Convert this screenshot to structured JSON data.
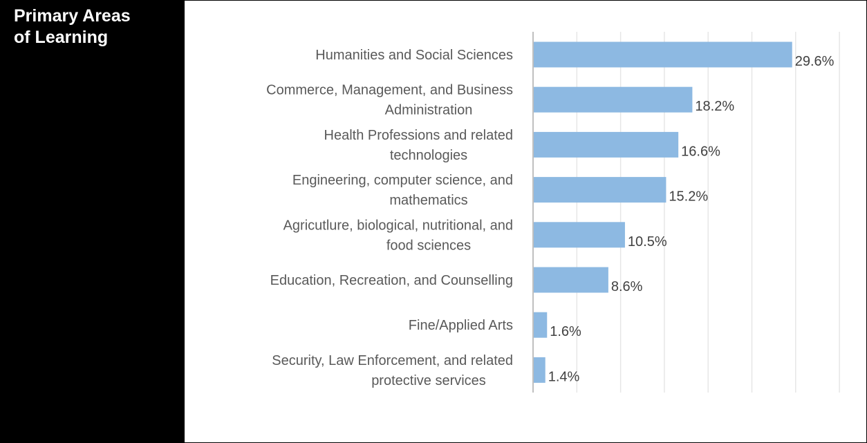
{
  "panel": {
    "title_line1": "Primary Areas",
    "title_line2": "of Learning"
  },
  "colors": {
    "bar": "#8db9e2",
    "gridline": "#e6e6e6",
    "axis": "#bfbfbf",
    "panel": "#000000",
    "panel_text": "#ffffff",
    "label_text": "#595959",
    "value_text": "#404040"
  },
  "chart_data": {
    "type": "bar",
    "orientation": "horizontal",
    "title": "Primary Areas of Learning",
    "categories": [
      [
        "Humanities and Social Sciences"
      ],
      [
        "Commerce, Management, and Business",
        "Administration"
      ],
      [
        "Health Professions and related",
        "technologies"
      ],
      [
        "Engineering, computer science, and",
        "mathematics"
      ],
      [
        "Agricutlure, biological, nutritional, and",
        "food sciences"
      ],
      [
        "Education, Recreation, and Counselling"
      ],
      [
        "Fine/Applied Arts"
      ],
      [
        "Security, Law Enforcement, and related",
        "protective services"
      ]
    ],
    "values": [
      29.6,
      18.2,
      16.6,
      15.2,
      10.5,
      8.6,
      1.6,
      1.4
    ],
    "value_labels": [
      "29.6%",
      "18.2%",
      "16.6%",
      "15.2%",
      "10.5%",
      "8.6%",
      "1.6%",
      "1.4%"
    ],
    "unit": "%",
    "xlim": [
      0,
      35
    ],
    "gridlines": "vertical",
    "legend": "none"
  }
}
